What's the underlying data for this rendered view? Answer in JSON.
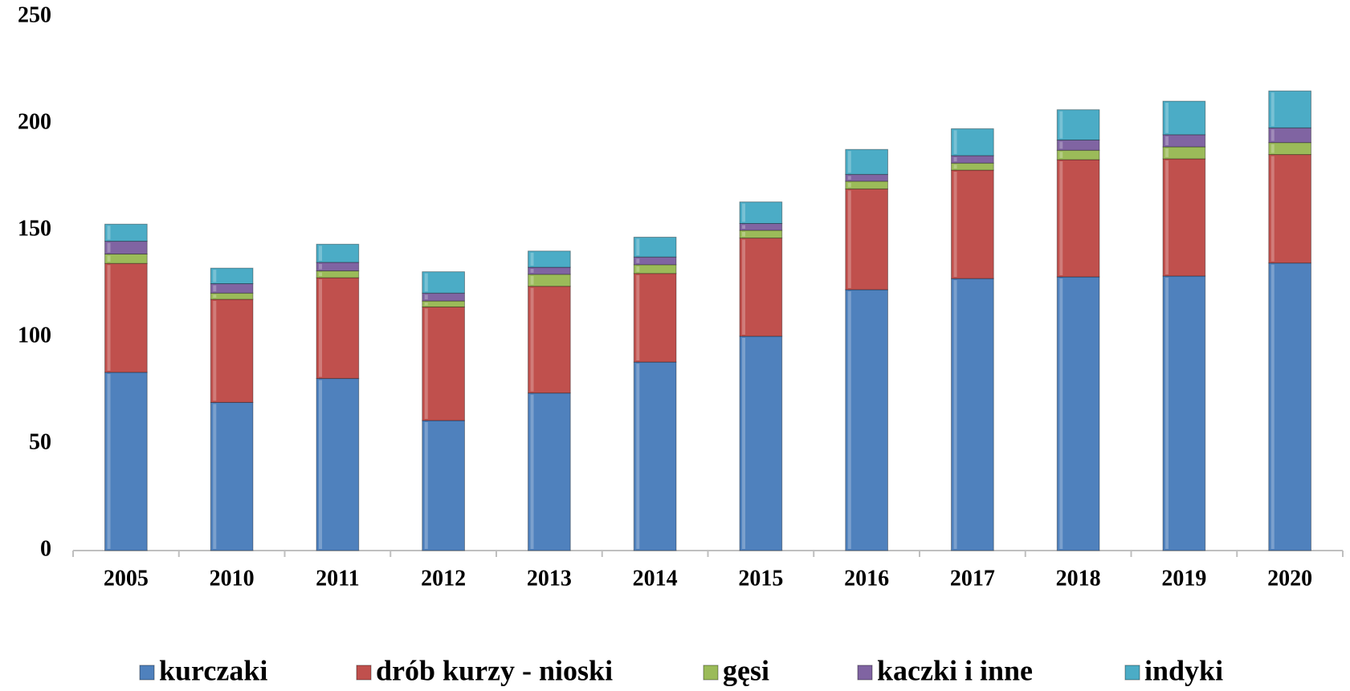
{
  "chart_data": {
    "type": "stacked_bar",
    "categories": [
      "2005",
      "2010",
      "2011",
      "2012",
      "2013",
      "2014",
      "2015",
      "2016",
      "2017",
      "2018",
      "2019",
      "2020"
    ],
    "series": [
      {
        "name": "kurczaki",
        "color": "#4f81bd",
        "values": [
          83.5,
          69.4,
          80.6,
          60.9,
          73.8,
          88.3,
          100.4,
          122.2,
          127.4,
          128.2,
          128.6,
          134.7
        ]
      },
      {
        "name": "drób kurzy - nioski",
        "color": "#c0504d",
        "values": [
          51,
          48.3,
          47.2,
          53.2,
          50,
          41.5,
          46,
          47.2,
          50.8,
          54.9,
          54.9,
          50.8
        ]
      },
      {
        "name": "gęsi",
        "color": "#9bbb59",
        "values": [
          4.4,
          2.9,
          3.2,
          2.8,
          5.6,
          4.1,
          3.6,
          3.6,
          3.3,
          4.4,
          5.6,
          5.6
        ]
      },
      {
        "name": "kaczki i inne",
        "color": "#8064a2",
        "values": [
          6,
          4.4,
          4,
          3.7,
          3.3,
          3.6,
          3.2,
          3.2,
          3.5,
          4.8,
          5.7,
          6.9
        ]
      },
      {
        "name": "indyki",
        "color": "#4bacc6",
        "values": [
          8,
          7.3,
          8.5,
          10,
          7.6,
          9.3,
          10.1,
          11.7,
          12.6,
          14.2,
          15.7,
          17.3
        ]
      }
    ],
    "ylim": [
      0,
      250
    ],
    "yticks": [
      0,
      50,
      100,
      150,
      200,
      250
    ],
    "grid": false,
    "legend": "bottom"
  }
}
